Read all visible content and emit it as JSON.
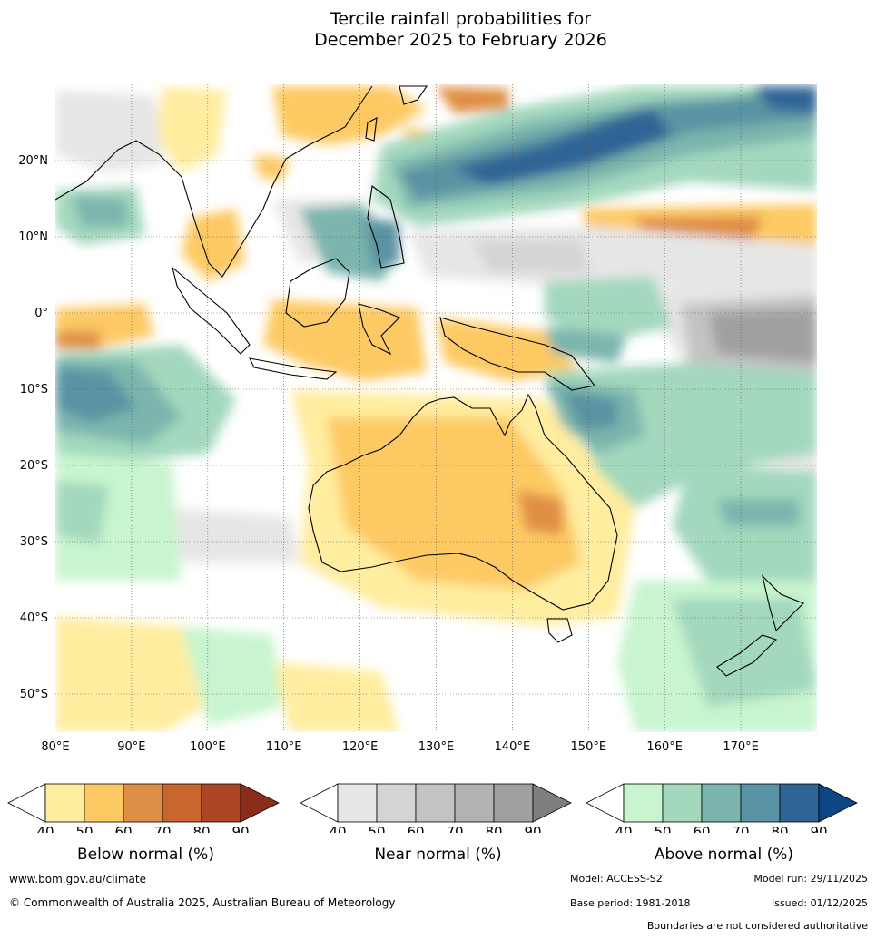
{
  "title": {
    "line1": "Tercile rainfall probabilities for",
    "line2": "December 2025 to February 2026"
  },
  "map": {
    "lat_labels": [
      "20°N",
      "10°N",
      "0°",
      "10°S",
      "20°S",
      "30°S",
      "40°S",
      "50°S"
    ],
    "lon_labels": [
      "80°E",
      "90°E",
      "100°E",
      "110°E",
      "120°E",
      "130°E",
      "140°E",
      "150°E",
      "160°E",
      "170°E"
    ],
    "extent": {
      "lon_min": 80,
      "lon_max": 180,
      "lat_min": -55,
      "lat_max": 30
    }
  },
  "legends": [
    {
      "title": "Below normal (%)",
      "ticks": [
        "40",
        "50",
        "60",
        "70",
        "80",
        "90"
      ],
      "colors": [
        "#ffffff",
        "#ffeda0",
        "#fdc963",
        "#df8f45",
        "#c9652f",
        "#ad4626",
        "#8c2d1c"
      ]
    },
    {
      "title": "Near normal (%)",
      "ticks": [
        "40",
        "50",
        "60",
        "70",
        "80",
        "90"
      ],
      "colors": [
        "#ffffff",
        "#e6e6e6",
        "#d4d4d4",
        "#c3c3c3",
        "#b2b2b2",
        "#a0a0a0",
        "#7e7e7e"
      ]
    },
    {
      "title": "Above normal (%)",
      "ticks": [
        "40",
        "50",
        "60",
        "70",
        "80",
        "90"
      ],
      "colors": [
        "#ffffff",
        "#c8f5cf",
        "#a3d8bd",
        "#7bb5ad",
        "#5a93a3",
        "#2f6596",
        "#0d4585"
      ]
    }
  ],
  "footer": {
    "website": "www.bom.gov.au/climate",
    "copyright": "© Commonwealth of Australia 2025, Australian Bureau of Meteorology",
    "model": "Model: ACCESS-S2",
    "model_run": "Model run: 29/11/2025",
    "base_period": "Base period: 1981-2018",
    "issued": "Issued: 01/12/2025",
    "boundaries_note": "Boundaries are not considered authoritative"
  }
}
